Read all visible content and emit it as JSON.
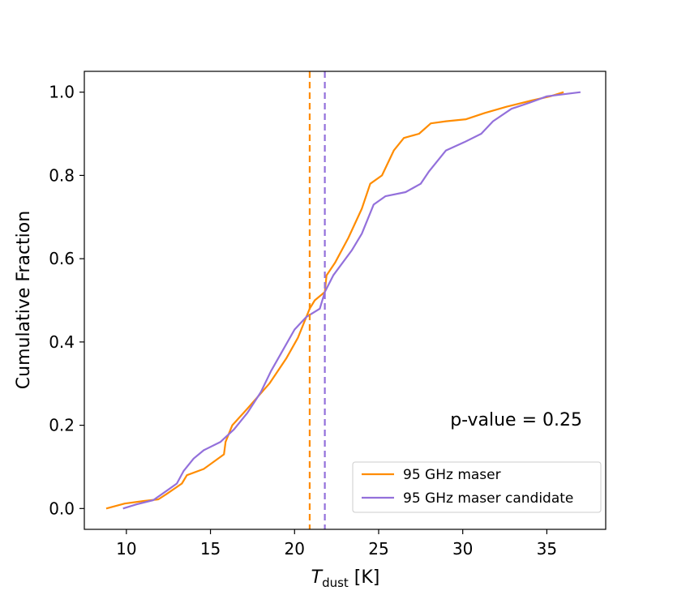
{
  "chart_data": {
    "type": "line",
    "title": "",
    "xlabel": "T_dust [K]",
    "xlabel_main": "T",
    "xlabel_sub": "dust",
    "xlabel_unit": " [K]",
    "ylabel": "Cumulative Fraction",
    "xlim": [
      7.5,
      38.5
    ],
    "ylim": [
      -0.05,
      1.05
    ],
    "xticks": [
      10,
      15,
      20,
      25,
      30,
      35
    ],
    "xtick_labels": [
      "10",
      "15",
      "20",
      "25",
      "30",
      "35"
    ],
    "yticks": [
      0.0,
      0.2,
      0.4,
      0.6,
      0.8,
      1.0
    ],
    "ytick_labels": [
      "0.0",
      "0.2",
      "0.4",
      "0.6",
      "0.8",
      "1.0"
    ],
    "annotation": "p-value = 0.25",
    "legend_position": "lower-right",
    "series": [
      {
        "name": "95 GHz maser",
        "color": "#ff8c00",
        "median": 20.9,
        "x": [
          8.8,
          9.9,
          11.0,
          11.9,
          12.4,
          13.3,
          13.6,
          14.6,
          15.8,
          15.9,
          16.3,
          17.2,
          18.5,
          19.5,
          20.2,
          20.9,
          21.2,
          21.8,
          21.9,
          22.4,
          23.2,
          24.0,
          24.5,
          25.2,
          25.9,
          26.5,
          27.4,
          28.1,
          29.0,
          30.2,
          31.3,
          32.6,
          34.1,
          35.2,
          36.0
        ],
        "y": [
          0.0,
          0.012,
          0.018,
          0.022,
          0.035,
          0.06,
          0.08,
          0.095,
          0.13,
          0.16,
          0.2,
          0.24,
          0.3,
          0.36,
          0.41,
          0.48,
          0.5,
          0.52,
          0.56,
          0.59,
          0.65,
          0.72,
          0.78,
          0.8,
          0.86,
          0.89,
          0.9,
          0.925,
          0.93,
          0.935,
          0.95,
          0.965,
          0.98,
          0.99,
          1.0
        ]
      },
      {
        "name": "95 GHz maser candidate",
        "color": "#9370db",
        "median": 21.8,
        "x": [
          9.8,
          10.6,
          11.6,
          12.3,
          13.0,
          13.4,
          14.0,
          14.6,
          15.6,
          16.4,
          17.2,
          18.0,
          18.6,
          19.3,
          20.0,
          20.7,
          21.5,
          21.8,
          22.3,
          23.4,
          24.0,
          24.7,
          25.4,
          26.6,
          27.5,
          28.0,
          29.0,
          30.1,
          31.1,
          31.8,
          32.9,
          34.0,
          35.0,
          37.0
        ],
        "y": [
          0.0,
          0.01,
          0.02,
          0.04,
          0.06,
          0.09,
          0.12,
          0.14,
          0.16,
          0.19,
          0.23,
          0.28,
          0.33,
          0.38,
          0.43,
          0.46,
          0.48,
          0.52,
          0.56,
          0.62,
          0.66,
          0.73,
          0.75,
          0.76,
          0.78,
          0.81,
          0.86,
          0.88,
          0.9,
          0.93,
          0.96,
          0.975,
          0.99,
          1.0
        ]
      }
    ]
  }
}
